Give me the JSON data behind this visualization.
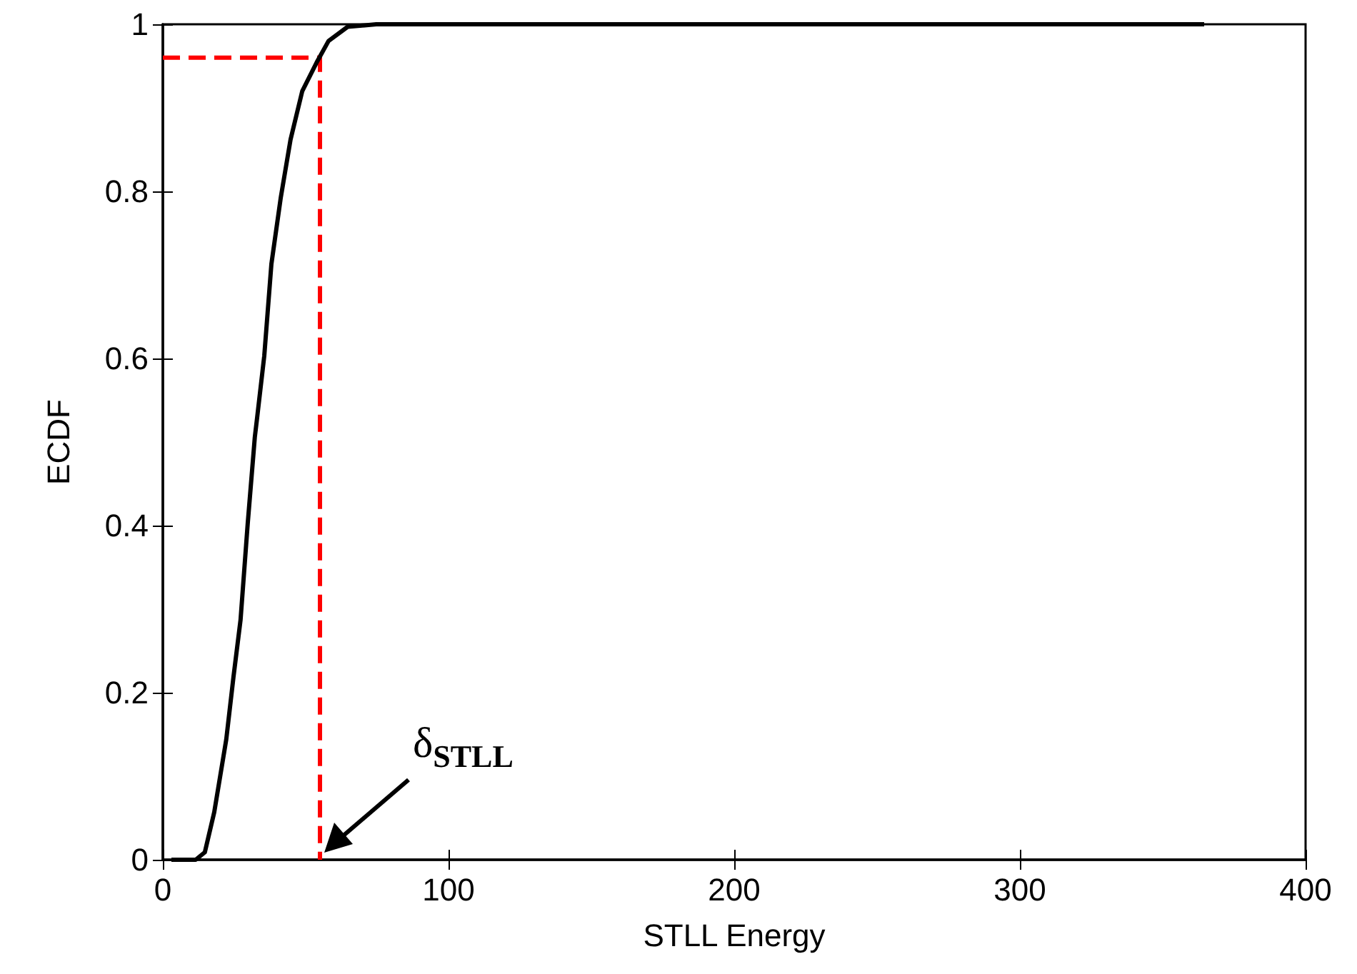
{
  "chart_data": {
    "type": "line",
    "xlabel": "STLL Energy",
    "ylabel": "ECDF",
    "xlim": [
      0,
      400
    ],
    "xticks": [
      0,
      100,
      200,
      300,
      400
    ],
    "ylim": [
      0,
      1
    ],
    "yticks": [
      0,
      0.2,
      0.4,
      0.6,
      0.8,
      1
    ],
    "grid": false,
    "annotations": [
      {
        "text": "δ$_{STLL}$",
        "x": 55,
        "y": 0
      }
    ],
    "series": [
      {
        "color": "#000000",
        "line_style": "solid",
        "x": [
          3,
          11.5,
          14.7,
          18,
          22.2,
          24.7,
          27.2,
          29.7,
          32.2,
          33,
          35.5,
          38,
          41.3,
          44.7,
          48.8,
          53.8,
          58,
          64.7,
          74.7,
          364.5
        ],
        "values": [
          0,
          0,
          0.009,
          0.057,
          0.144,
          0.218,
          0.287,
          0.402,
          0.506,
          0.529,
          0.603,
          0.713,
          0.793,
          0.862,
          0.92,
          0.954,
          0.98,
          0.997,
          1,
          1
        ]
      },
      {
        "color": "#ff0000",
        "line_style": "dashed",
        "x": [
          0,
          55,
          55
        ],
        "values": [
          0.96,
          0.96,
          0
        ]
      }
    ]
  }
}
